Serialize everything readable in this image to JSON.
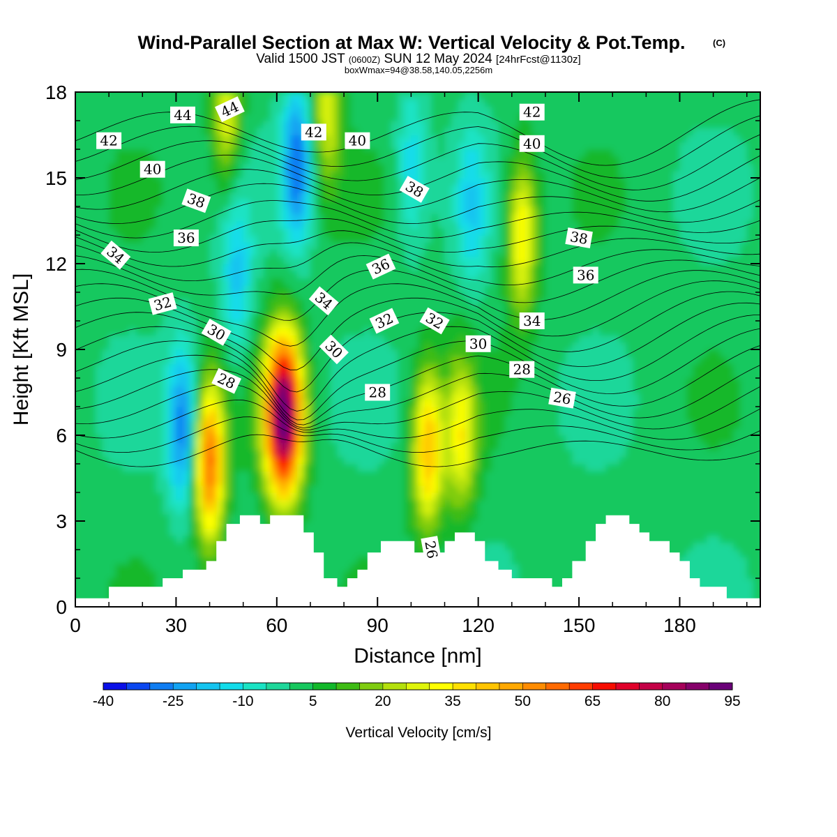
{
  "chart_data": {
    "type": "heatmap",
    "title": "Wind-Parallel Section at Max W: Vertical Velocity & Pot.Temp.",
    "title_mark": "(C)",
    "subtitle": {
      "valid": "Valid 1500 JST",
      "zulu": "(0600Z)",
      "date": "SUN 12 May 2024",
      "forecast": "[24hrFcst@1130z]"
    },
    "info_line": "boxWmax=94@38.58,140.05,2256m",
    "xlabel": "Distance [nm]",
    "ylabel": "Height [Kft MSL]",
    "xlim": [
      0,
      204
    ],
    "ylim": [
      0,
      18
    ],
    "x_ticks": [
      "0",
      "30",
      "60",
      "90",
      "120",
      "150",
      "180"
    ],
    "y_ticks": [
      "0",
      "3",
      "6",
      "9",
      "12",
      "15",
      "18"
    ],
    "grid": false,
    "colorbar": {
      "label": "Vertical Velocity [cm/s]",
      "tick_labels": [
        "-40",
        "-25",
        "-10",
        "5",
        "20",
        "35",
        "50",
        "65",
        "80",
        "95"
      ],
      "levels": [
        -40,
        -35,
        -30,
        -25,
        -20,
        -15,
        -10,
        -5,
        0,
        5,
        10,
        15,
        20,
        25,
        30,
        35,
        40,
        45,
        50,
        55,
        60,
        65,
        70,
        75,
        80,
        85,
        90,
        95
      ],
      "colors": [
        "#0a10e8",
        "#0b47f0",
        "#0f7df2",
        "#12a3f2",
        "#14c4f0",
        "#12dcea",
        "#1ae3c4",
        "#1ed79a",
        "#17c85e",
        "#12b82a",
        "#3ebc14",
        "#7fcc10",
        "#b4e00c",
        "#dff50a",
        "#ffff00",
        "#ffe000",
        "#ffc400",
        "#ffa800",
        "#ff8c00",
        "#ff6a00",
        "#ff3c00",
        "#f70c00",
        "#e0002a",
        "#c40046",
        "#a6005a",
        "#86006a",
        "#6a0078"
      ]
    },
    "velocity_cores": [
      {
        "x": 40,
        "y": 5.0,
        "w": 55
      },
      {
        "x": 62,
        "y": 6.7,
        "w": 94
      },
      {
        "x": 105,
        "y": 5.5,
        "w": 42
      },
      {
        "x": 115,
        "y": 6.0,
        "w": 30
      },
      {
        "x": 133,
        "y": 13.0,
        "w": 33
      },
      {
        "x": 66,
        "y": 15.5,
        "w": -32
      },
      {
        "x": 32,
        "y": 6.3,
        "w": -30
      },
      {
        "x": 48,
        "y": 11.5,
        "w": -18
      },
      {
        "x": 100,
        "y": 15.5,
        "w": -15
      },
      {
        "x": 118,
        "y": 14.0,
        "w": -15
      },
      {
        "x": 45,
        "y": 17.5,
        "w": 28
      },
      {
        "x": 75,
        "y": 17.5,
        "w": 25
      }
    ],
    "theta_contour_labels": [
      {
        "text": "44",
        "x": 32,
        "y": 17.2,
        "angle": 0
      },
      {
        "text": "44",
        "x": 46,
        "y": 17.4,
        "angle": -25
      },
      {
        "text": "42",
        "x": 10,
        "y": 16.3,
        "angle": 0
      },
      {
        "text": "42",
        "x": 71,
        "y": 16.6,
        "angle": 0
      },
      {
        "text": "42",
        "x": 136,
        "y": 17.3,
        "angle": 0
      },
      {
        "text": "40",
        "x": 23,
        "y": 15.3,
        "angle": 0
      },
      {
        "text": "40",
        "x": 84,
        "y": 16.3,
        "angle": 0
      },
      {
        "text": "40",
        "x": 136,
        "y": 16.2,
        "angle": 0
      },
      {
        "text": "38",
        "x": 36,
        "y": 14.2,
        "angle": 20
      },
      {
        "text": "38",
        "x": 101,
        "y": 14.6,
        "angle": 30
      },
      {
        "text": "38",
        "x": 150,
        "y": 12.9,
        "angle": 10
      },
      {
        "text": "36",
        "x": 33,
        "y": 12.9,
        "angle": 0
      },
      {
        "text": "36",
        "x": 91,
        "y": 11.9,
        "angle": -25
      },
      {
        "text": "36",
        "x": 152,
        "y": 11.6,
        "angle": 0
      },
      {
        "text": "34",
        "x": 12,
        "y": 12.3,
        "angle": 40
      },
      {
        "text": "34",
        "x": 74,
        "y": 10.7,
        "angle": 40
      },
      {
        "text": "34",
        "x": 136,
        "y": 10.0,
        "angle": 0
      },
      {
        "text": "32",
        "x": 26,
        "y": 10.6,
        "angle": -15
      },
      {
        "text": "32",
        "x": 92,
        "y": 10.0,
        "angle": -25
      },
      {
        "text": "32",
        "x": 107,
        "y": 10.0,
        "angle": 30
      },
      {
        "text": "30",
        "x": 42,
        "y": 9.6,
        "angle": 30
      },
      {
        "text": "30",
        "x": 77,
        "y": 9.0,
        "angle": 45
      },
      {
        "text": "30",
        "x": 120,
        "y": 9.2,
        "angle": 0
      },
      {
        "text": "28",
        "x": 45,
        "y": 7.9,
        "angle": 25
      },
      {
        "text": "28",
        "x": 90,
        "y": 7.5,
        "angle": 0
      },
      {
        "text": "28",
        "x": 133,
        "y": 8.3,
        "angle": 0
      },
      {
        "text": "26",
        "x": 145,
        "y": 7.3,
        "angle": 10
      },
      {
        "text": "26",
        "x": 106,
        "y": 2.0,
        "angle": 80
      }
    ],
    "terrain_profile": [
      [
        0,
        0.3
      ],
      [
        10,
        0.3
      ],
      [
        10,
        0.7
      ],
      [
        26,
        0.7
      ],
      [
        26,
        1.0
      ],
      [
        32,
        1.0
      ],
      [
        32,
        1.3
      ],
      [
        39,
        1.3
      ],
      [
        39,
        1.6
      ],
      [
        42,
        1.6
      ],
      [
        42,
        2.3
      ],
      [
        45,
        2.3
      ],
      [
        45,
        2.9
      ],
      [
        49,
        2.9
      ],
      [
        49,
        3.2
      ],
      [
        55,
        3.2
      ],
      [
        55,
        2.9
      ],
      [
        58,
        2.9
      ],
      [
        58,
        3.2
      ],
      [
        68,
        3.2
      ],
      [
        68,
        2.6
      ],
      [
        71,
        2.6
      ],
      [
        71,
        1.9
      ],
      [
        74,
        1.9
      ],
      [
        74,
        1.0
      ],
      [
        78,
        1.0
      ],
      [
        78,
        0.7
      ],
      [
        81,
        0.7
      ],
      [
        81,
        1.0
      ],
      [
        84,
        1.0
      ],
      [
        84,
        1.3
      ],
      [
        87,
        1.3
      ],
      [
        87,
        1.9
      ],
      [
        91,
        1.9
      ],
      [
        91,
        2.3
      ],
      [
        101,
        2.3
      ],
      [
        101,
        1.9
      ],
      [
        110,
        1.9
      ],
      [
        110,
        2.3
      ],
      [
        113,
        2.3
      ],
      [
        113,
        2.6
      ],
      [
        119,
        2.6
      ],
      [
        119,
        2.3
      ],
      [
        122,
        2.3
      ],
      [
        122,
        1.6
      ],
      [
        126,
        1.6
      ],
      [
        126,
        1.3
      ],
      [
        130,
        1.3
      ],
      [
        130,
        1.0
      ],
      [
        142,
        1.0
      ],
      [
        142,
        0.7
      ],
      [
        145,
        0.7
      ],
      [
        145,
        1.0
      ],
      [
        148,
        1.0
      ],
      [
        148,
        1.6
      ],
      [
        152,
        1.6
      ],
      [
        152,
        2.3
      ],
      [
        155,
        2.3
      ],
      [
        155,
        2.9
      ],
      [
        158,
        2.9
      ],
      [
        158,
        3.2
      ],
      [
        165,
        3.2
      ],
      [
        165,
        2.9
      ],
      [
        168,
        2.9
      ],
      [
        168,
        2.6
      ],
      [
        171,
        2.6
      ],
      [
        171,
        2.3
      ],
      [
        177,
        2.3
      ],
      [
        177,
        1.9
      ],
      [
        180,
        1.9
      ],
      [
        180,
        1.6
      ],
      [
        183,
        1.6
      ],
      [
        183,
        1.0
      ],
      [
        186,
        1.0
      ],
      [
        186,
        0.7
      ],
      [
        194,
        0.7
      ],
      [
        194,
        0.3
      ],
      [
        204,
        0.3
      ],
      [
        204,
        0
      ]
    ]
  }
}
